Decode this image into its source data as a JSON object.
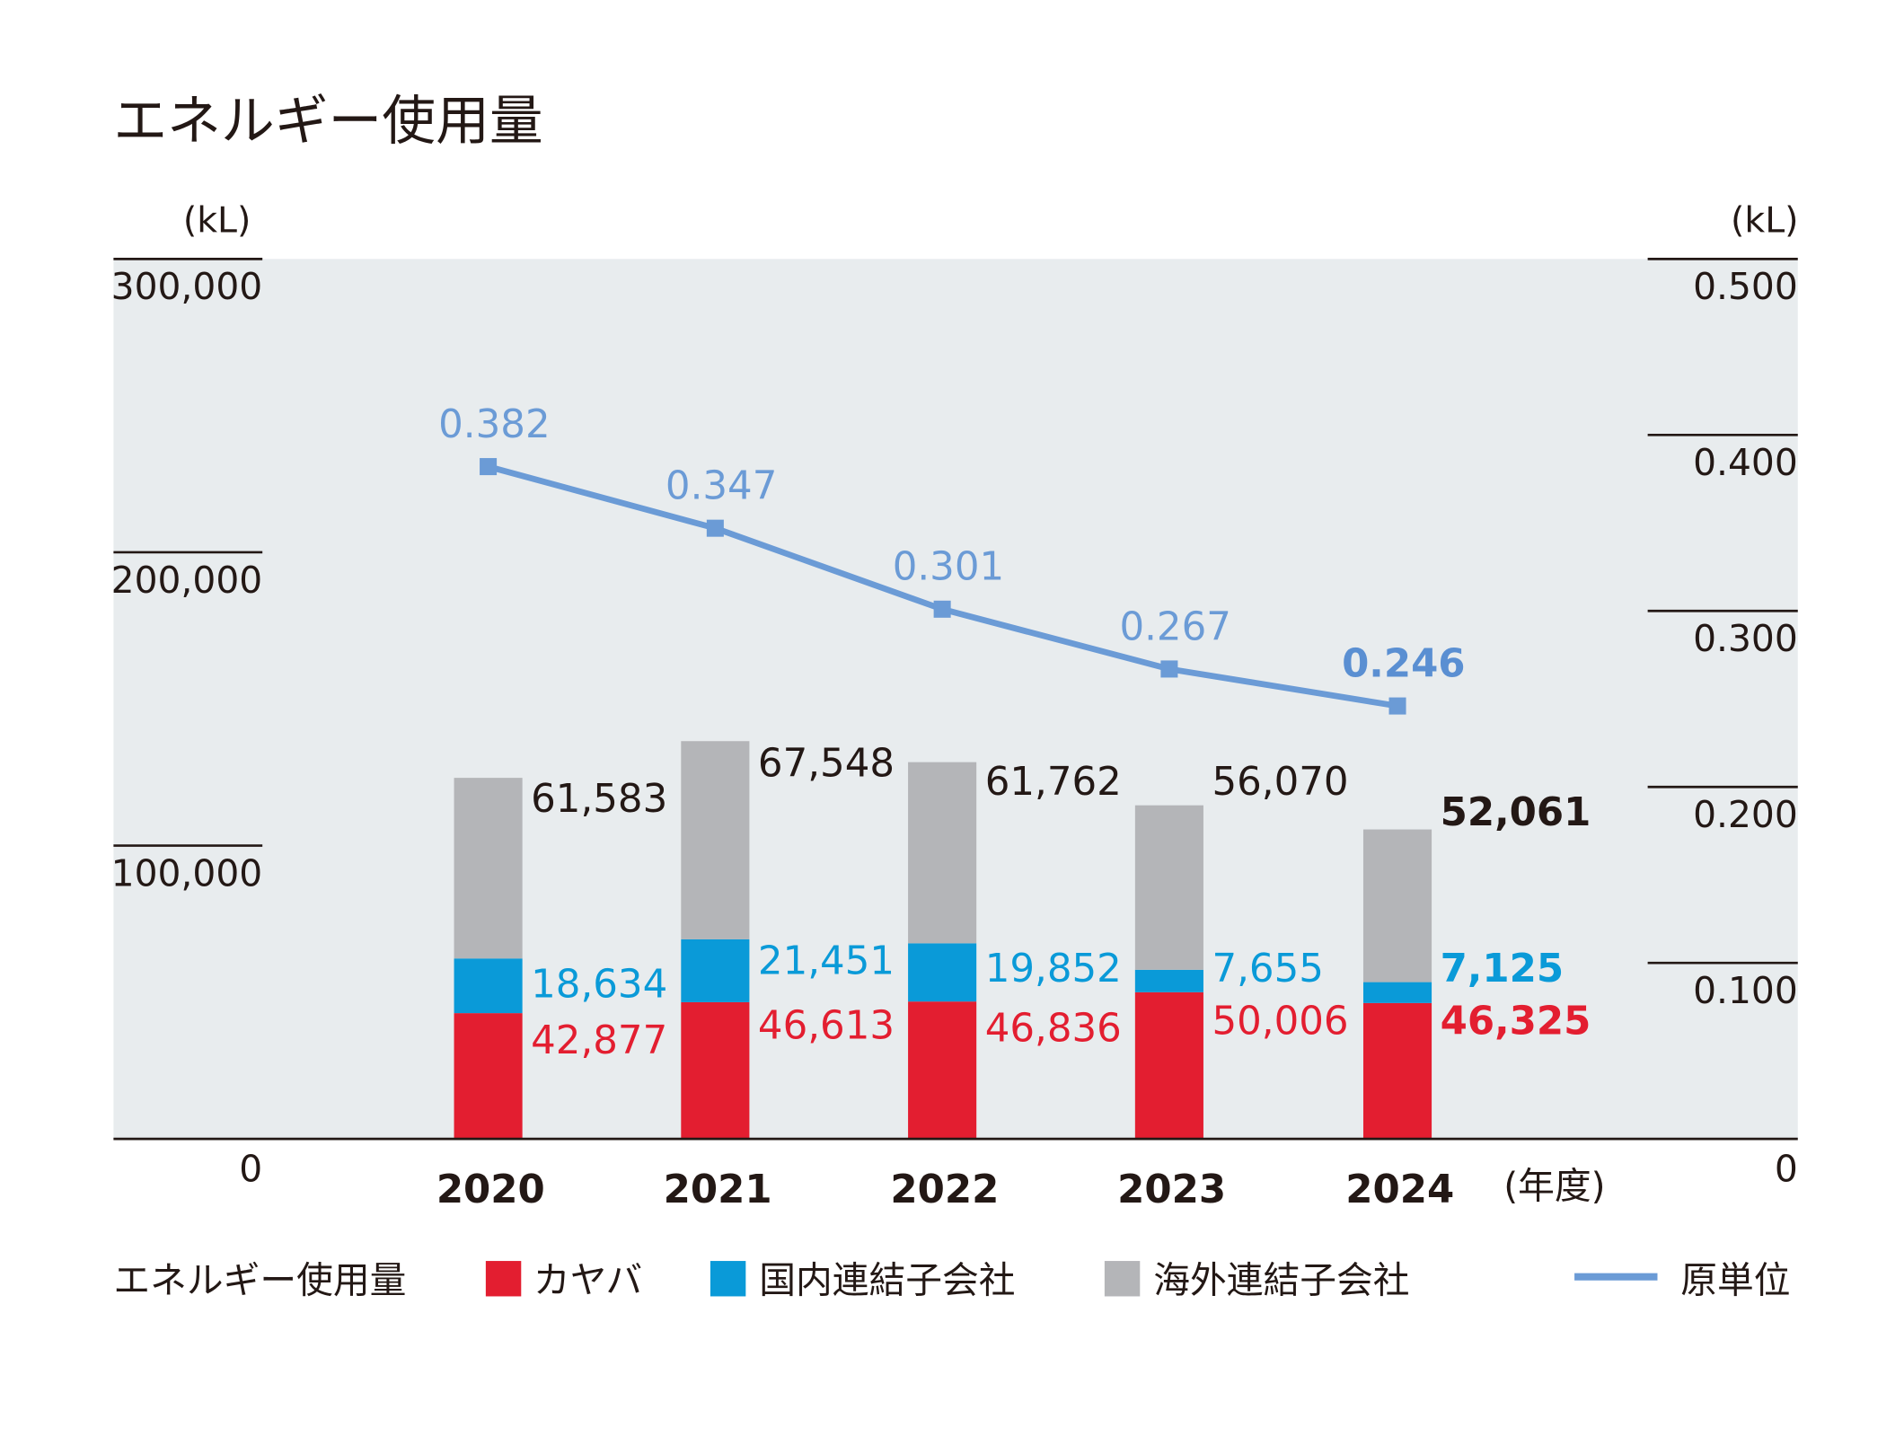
{
  "chart_data": {
    "type": "bar",
    "title": "エネルギー使用量",
    "left_unit": "(kL)",
    "right_unit": "(kL)",
    "x_unit": "(年度)",
    "categories": [
      "2020",
      "2021",
      "2022",
      "2023",
      "2024"
    ],
    "left_axis": {
      "ylim": [
        0,
        300000
      ],
      "ticks": [
        "0",
        "100,000",
        "200,000",
        "300,000"
      ]
    },
    "right_axis": {
      "ylim": [
        0,
        0.5
      ],
      "ticks": [
        "0",
        "0.100",
        "0.200",
        "0.300",
        "0.400",
        "0.500"
      ]
    },
    "legend_title": "エネルギー使用量",
    "legend_placement": "bottom",
    "series": [
      {
        "name": "カヤバ",
        "type": "bar",
        "color": "#e31e30",
        "values": [
          42877,
          46613,
          46836,
          50006,
          46325
        ],
        "labels": [
          "42,877",
          "46,613",
          "46,836",
          "50,006",
          "46,325"
        ]
      },
      {
        "name": "国内連結子会社",
        "type": "bar",
        "color": "#0a9ad8",
        "values": [
          18634,
          21451,
          19852,
          7655,
          7125
        ],
        "labels": [
          "18,634",
          "21,451",
          "19,852",
          "7,655",
          "7,125"
        ]
      },
      {
        "name": "海外連結子会社",
        "type": "bar",
        "color": "#b4b5b8",
        "values": [
          61583,
          67548,
          61762,
          56070,
          52061
        ],
        "labels": [
          "61,583",
          "67,548",
          "61,762",
          "56,070",
          "52,061"
        ]
      },
      {
        "name": "原単位",
        "type": "line",
        "axis": "right",
        "color": "#6b9bd6",
        "values": [
          0.382,
          0.347,
          0.301,
          0.267,
          0.246
        ],
        "labels": [
          "0.382",
          "0.347",
          "0.301",
          "0.267",
          "0.246"
        ]
      }
    ],
    "plot_background": "#e8ecee",
    "highlight_last": true
  }
}
